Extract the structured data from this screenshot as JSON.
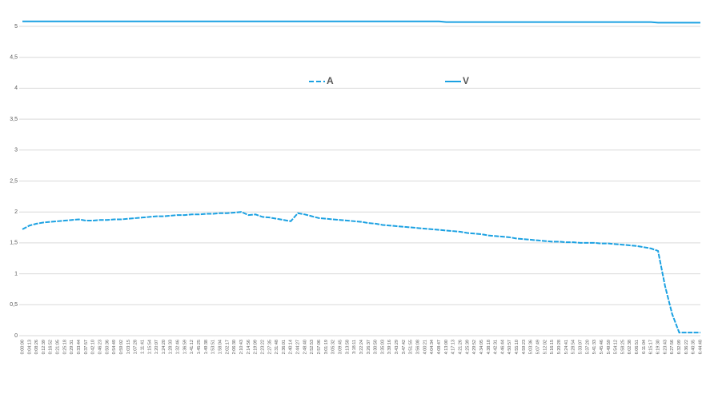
{
  "chart_data": {
    "type": "line",
    "categories": [
      "0:00:00",
      "0:04:13",
      "0:08:26",
      "0:12:39",
      "0:16:52",
      "0:21:05",
      "0:25:18",
      "0:29:31",
      "0:33:44",
      "0:37:57",
      "0:42:10",
      "0:46:23",
      "0:50:36",
      "0:54:49",
      "0:59:02",
      "1:03:15",
      "1:07:28",
      "1:11:41",
      "1:15:54",
      "1:20:07",
      "1:24:20",
      "1:28:33",
      "1:32:46",
      "1:36:59",
      "1:41:12",
      "1:45:25",
      "1:49:38",
      "1:53:51",
      "1:58:04",
      "2:02:17",
      "2:06:30",
      "2:10:43",
      "2:14:56",
      "2:19:09",
      "2:23:22",
      "2:27:35",
      "2:31:48",
      "2:36:01",
      "2:40:14",
      "2:44:27",
      "2:48:40",
      "2:52:53",
      "2:57:06",
      "3:01:19",
      "3:05:32",
      "3:09:45",
      "3:13:58",
      "3:18:11",
      "3:22:24",
      "3:26:37",
      "3:30:50",
      "3:35:03",
      "3:39:16",
      "3:43:29",
      "3:47:42",
      "3:51:55",
      "3:56:08",
      "4:00:21",
      "4:04:34",
      "4:08:47",
      "4:13:00",
      "4:17:13",
      "4:21:26",
      "4:25:39",
      "4:29:52",
      "4:34:05",
      "4:38:18",
      "4:42:31",
      "4:46:44",
      "4:50:57",
      "4:55:10",
      "4:59:23",
      "5:03:36",
      "5:07:49",
      "5:12:02",
      "5:16:15",
      "5:20:28",
      "5:24:41",
      "5:28:54",
      "5:33:07",
      "5:37:20",
      "5:41:33",
      "5:45:46",
      "5:49:59",
      "5:54:12",
      "5:58:25",
      "6:02:38",
      "6:06:51",
      "6:11:04",
      "6:15:17",
      "6:19:30",
      "6:23:43",
      "6:27:56",
      "6:32:09",
      "6:36:22",
      "6:40:35",
      "6:44:48"
    ],
    "series": [
      {
        "name": "A",
        "color": "#1ba1e2",
        "line_style": "dashed",
        "values": [
          1.72,
          1.78,
          1.81,
          1.83,
          1.84,
          1.85,
          1.86,
          1.87,
          1.88,
          1.86,
          1.86,
          1.87,
          1.87,
          1.88,
          1.88,
          1.89,
          1.9,
          1.91,
          1.92,
          1.93,
          1.93,
          1.94,
          1.95,
          1.95,
          1.96,
          1.96,
          1.97,
          1.97,
          1.98,
          1.98,
          1.99,
          2.0,
          1.95,
          1.96,
          1.92,
          1.91,
          1.89,
          1.87,
          1.85,
          1.98,
          1.96,
          1.93,
          1.9,
          1.89,
          1.88,
          1.87,
          1.86,
          1.85,
          1.84,
          1.82,
          1.81,
          1.79,
          1.78,
          1.77,
          1.76,
          1.75,
          1.74,
          1.73,
          1.72,
          1.71,
          1.7,
          1.69,
          1.68,
          1.66,
          1.65,
          1.64,
          1.62,
          1.61,
          1.6,
          1.59,
          1.57,
          1.56,
          1.55,
          1.54,
          1.53,
          1.52,
          1.52,
          1.51,
          1.51,
          1.5,
          1.5,
          1.5,
          1.49,
          1.49,
          1.48,
          1.47,
          1.46,
          1.45,
          1.43,
          1.41,
          1.37,
          0.8,
          0.35,
          0.05,
          0.05,
          0.05,
          0.05
        ]
      },
      {
        "name": "V",
        "color": "#1ba1e2",
        "line_style": "solid",
        "values": [
          5.08,
          5.08,
          5.08,
          5.08,
          5.08,
          5.08,
          5.08,
          5.08,
          5.08,
          5.08,
          5.08,
          5.08,
          5.08,
          5.08,
          5.08,
          5.08,
          5.08,
          5.08,
          5.08,
          5.08,
          5.08,
          5.08,
          5.08,
          5.08,
          5.08,
          5.08,
          5.08,
          5.08,
          5.08,
          5.08,
          5.08,
          5.08,
          5.08,
          5.08,
          5.08,
          5.08,
          5.08,
          5.08,
          5.08,
          5.08,
          5.08,
          5.08,
          5.08,
          5.08,
          5.08,
          5.08,
          5.08,
          5.08,
          5.08,
          5.08,
          5.08,
          5.08,
          5.08,
          5.08,
          5.08,
          5.08,
          5.08,
          5.08,
          5.08,
          5.08,
          5.07,
          5.07,
          5.07,
          5.07,
          5.07,
          5.07,
          5.07,
          5.07,
          5.07,
          5.07,
          5.07,
          5.07,
          5.07,
          5.07,
          5.07,
          5.07,
          5.07,
          5.07,
          5.07,
          5.07,
          5.07,
          5.07,
          5.07,
          5.07,
          5.07,
          5.07,
          5.07,
          5.07,
          5.07,
          5.07,
          5.06,
          5.06,
          5.06,
          5.06,
          5.06,
          5.06,
          5.06
        ]
      }
    ],
    "ylim": [
      0,
      5
    ],
    "yticks": [
      0,
      {
        "value": 0.5,
        "label": "0,5"
      },
      1,
      {
        "value": 1.5,
        "label": "1,5"
      },
      2,
      {
        "value": 2.5,
        "label": "2,5"
      },
      3,
      {
        "value": 3.5,
        "label": "3,5"
      },
      4,
      {
        "value": 4.5,
        "label": "4,5"
      },
      5
    ],
    "grid": true,
    "legend": "top"
  }
}
